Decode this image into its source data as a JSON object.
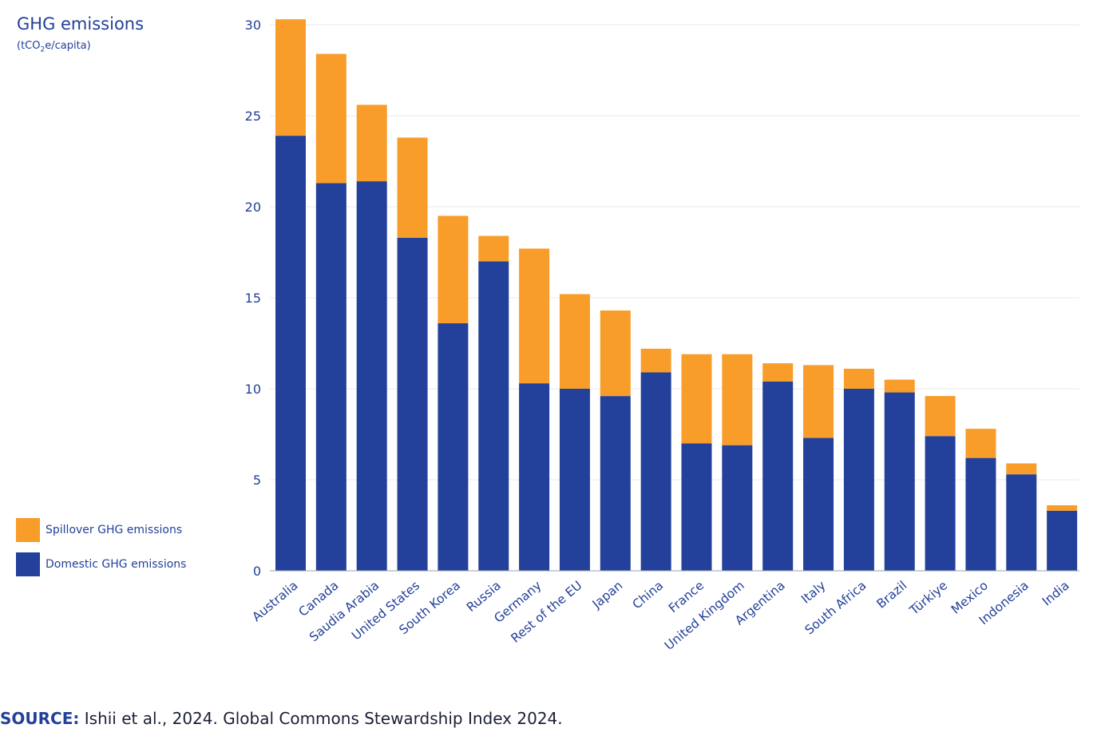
{
  "chart_data": {
    "type": "bar",
    "stacked": true,
    "title": "GHG emissions",
    "units_prefix": "(tCO",
    "units_sub": "2",
    "units_suffix": "e/capita)",
    "ylim": [
      0,
      30
    ],
    "yticks": [
      0,
      5,
      10,
      15,
      20,
      25,
      30
    ],
    "grid": true,
    "categories": [
      "Australia",
      "Canada",
      "Saudia Arabia",
      "United States",
      "South Korea",
      "Russia",
      "Germany",
      "Rest of the EU",
      "Japan",
      "China",
      "France",
      "United Kingdom",
      "Argentina",
      "Italy",
      "South Africa",
      "Brazil",
      "Türkiye",
      "Mexico",
      "Indonesia",
      "India"
    ],
    "series": [
      {
        "name": "Domestic GHG emissions",
        "color": "#23409a",
        "values": [
          23.9,
          21.3,
          21.4,
          18.3,
          13.6,
          17.0,
          10.3,
          10.0,
          9.6,
          10.9,
          7.0,
          6.9,
          10.4,
          7.3,
          10.0,
          9.8,
          7.4,
          6.2,
          5.3,
          3.3
        ]
      },
      {
        "name": "Spillover GHG emissions",
        "color": "#f89d2a",
        "values": [
          6.4,
          7.1,
          4.2,
          5.5,
          5.9,
          1.4,
          7.4,
          5.2,
          4.7,
          1.3,
          4.9,
          5.0,
          1.0,
          4.0,
          1.1,
          0.7,
          2.2,
          1.6,
          0.6,
          0.3
        ]
      }
    ]
  },
  "legend": {
    "spillover_label": "Spillover GHG emissions",
    "domestic_label": "Domestic GHG emissions",
    "spillover_color": "#f89d2a",
    "domestic_color": "#23409a"
  },
  "source": {
    "label": "SOURCE:",
    "text": " Ishii et al., 2024. Global Commons Stewardship Index 2024."
  }
}
